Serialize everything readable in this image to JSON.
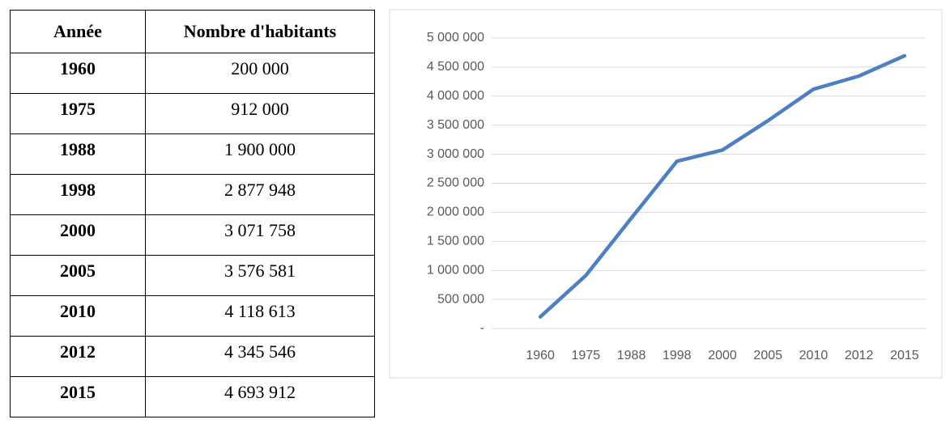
{
  "table": {
    "header": [
      "Année",
      "Nombre d'habitants"
    ],
    "rows": [
      [
        "1960",
        "200 000"
      ],
      [
        "1975",
        "912 000"
      ],
      [
        "1988",
        "1 900 000"
      ],
      [
        "1998",
        "2 877 948"
      ],
      [
        "2000",
        "3 071 758"
      ],
      [
        "2005",
        "3 576 581"
      ],
      [
        "2010",
        "4 118 613"
      ],
      [
        "2012",
        "4 345 546"
      ],
      [
        "2015",
        "4 693 912"
      ]
    ]
  },
  "chart_data": {
    "type": "line",
    "categories": [
      "1960",
      "1975",
      "1988",
      "1998",
      "2000",
      "2005",
      "2010",
      "2012",
      "2015"
    ],
    "series": [
      {
        "name": "Nombre d'habitants",
        "color": "#4f7fbf",
        "values": [
          200000,
          912000,
          1900000,
          2877948,
          3071758,
          3576581,
          4118613,
          4345546,
          4693912
        ]
      }
    ],
    "ylim": [
      0,
      5000000
    ],
    "yticks": [
      {
        "value": 0,
        "label": "-"
      },
      {
        "value": 500000,
        "label": "500 000"
      },
      {
        "value": 1000000,
        "label": "1 000 000"
      },
      {
        "value": 1500000,
        "label": "1 500 000"
      },
      {
        "value": 2000000,
        "label": "2 000 000"
      },
      {
        "value": 2500000,
        "label": "2 500 000"
      },
      {
        "value": 3000000,
        "label": "3 000 000"
      },
      {
        "value": 3500000,
        "label": "3 500 000"
      },
      {
        "value": 4000000,
        "label": "4 000 000"
      },
      {
        "value": 4500000,
        "label": "4 500 000"
      },
      {
        "value": 5000000,
        "label": "5 000 000"
      }
    ],
    "grid": true
  }
}
